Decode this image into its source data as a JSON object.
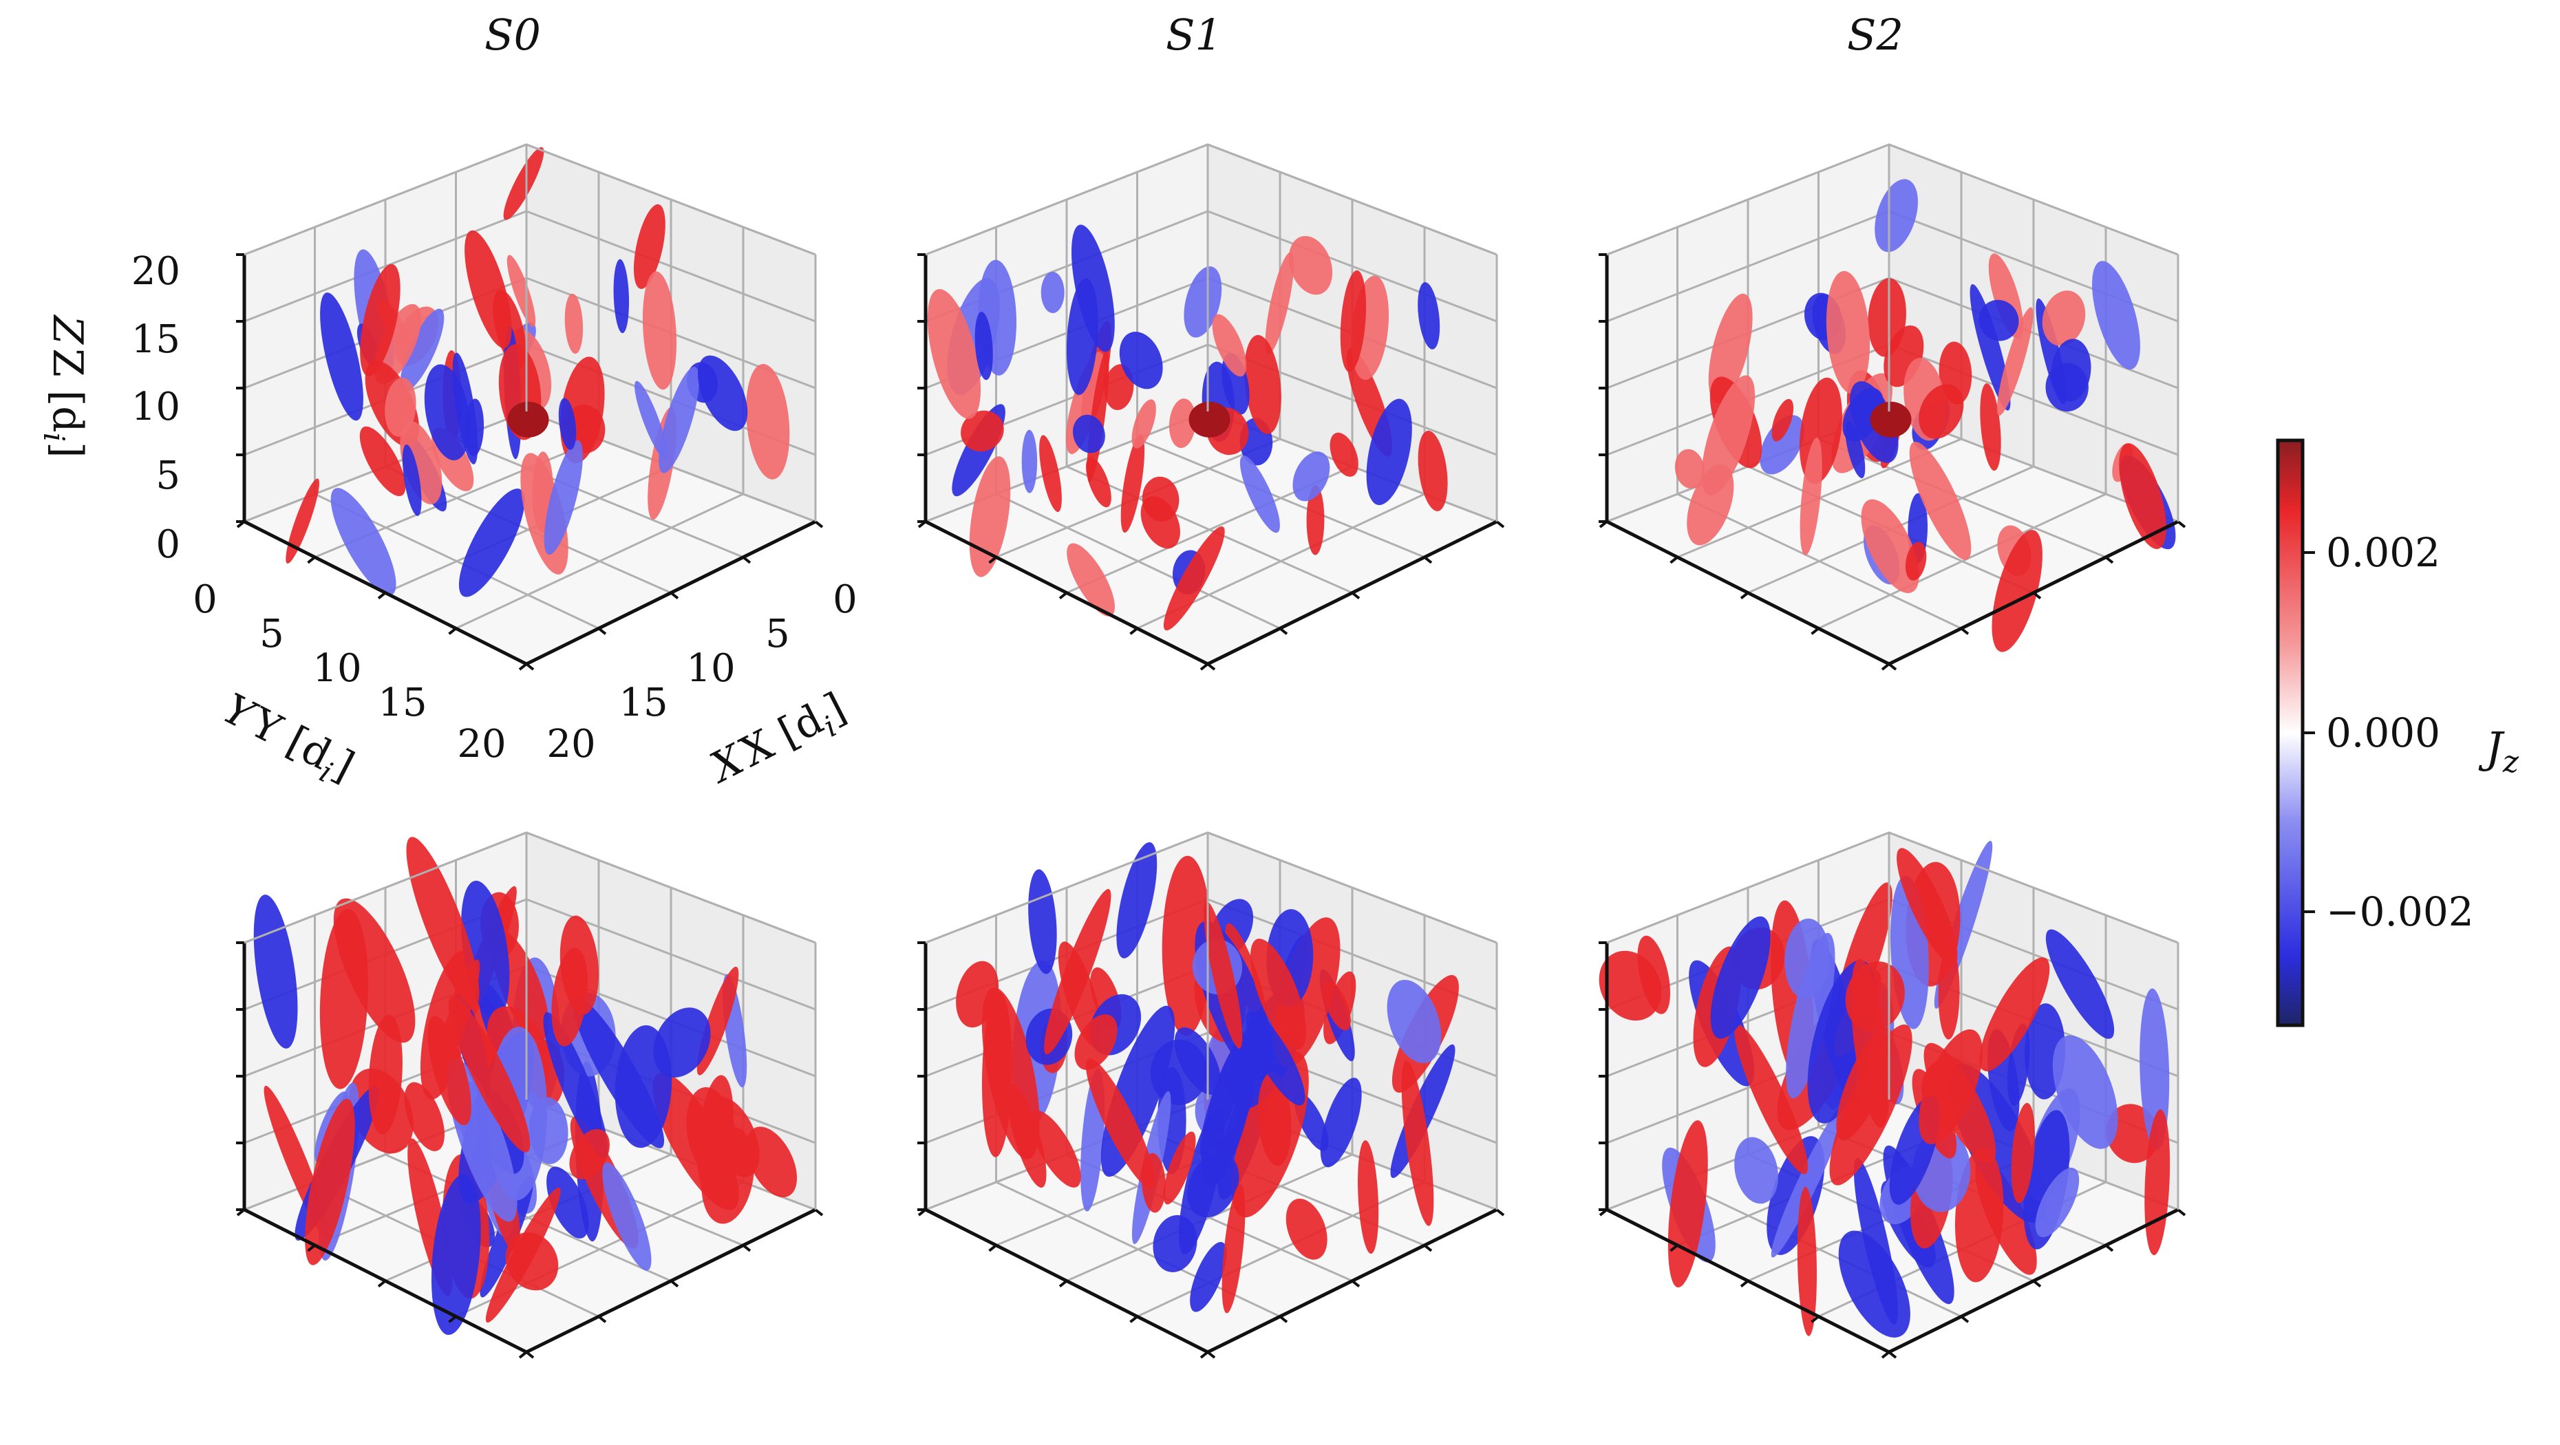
{
  "figure": {
    "column_titles": [
      "S0",
      "S1",
      "S2"
    ],
    "axes_labels": {
      "x": "X [d",
      "y": "Y [d",
      "z": "Z [d",
      "subscript": "i",
      "close": "]"
    },
    "ticks": {
      "x": [
        "0",
        "5",
        "10",
        "15",
        "20"
      ],
      "y": [
        "0",
        "5",
        "10",
        "15",
        "20"
      ],
      "z": [
        "0",
        "5",
        "10",
        "15",
        "20"
      ]
    },
    "colors": {
      "pane": "#f3f3f3",
      "grid": "#b0b0b0",
      "spine": "#111111",
      "pos_strong": "#e8262a",
      "pos_weak": "#f26a6e",
      "pos_peak": "#a3161c",
      "neg_strong": "#2c2ee0",
      "neg_weak": "#6b6ef0"
    }
  },
  "colorbar": {
    "label": "J",
    "label_sub": "z",
    "ticks": [
      {
        "value": 0.002,
        "label": "0.002"
      },
      {
        "value": 0.0,
        "label": "0.000"
      },
      {
        "value": -0.002,
        "label": "−0.002"
      }
    ],
    "range": [
      -0.0033,
      0.0033
    ],
    "colormap": "seismic-like diverging (dark blue → white → dark red)"
  },
  "chart_data": {
    "type": "3d-isosurface-grid",
    "rows": 2,
    "cols": 3,
    "panels": [
      "S0 (top)",
      "S1 (top)",
      "S2 (top)",
      "S0 (bottom)",
      "S1 (bottom)",
      "S2 (bottom)"
    ],
    "xlabel": "X [d_i]",
    "ylabel": "Y [d_i]",
    "zlabel": "Z [d_i]",
    "xlim": [
      0,
      20
    ],
    "ylim": [
      0,
      20
    ],
    "zlim": [
      0,
      20
    ],
    "color_variable": "J_z"
  }
}
